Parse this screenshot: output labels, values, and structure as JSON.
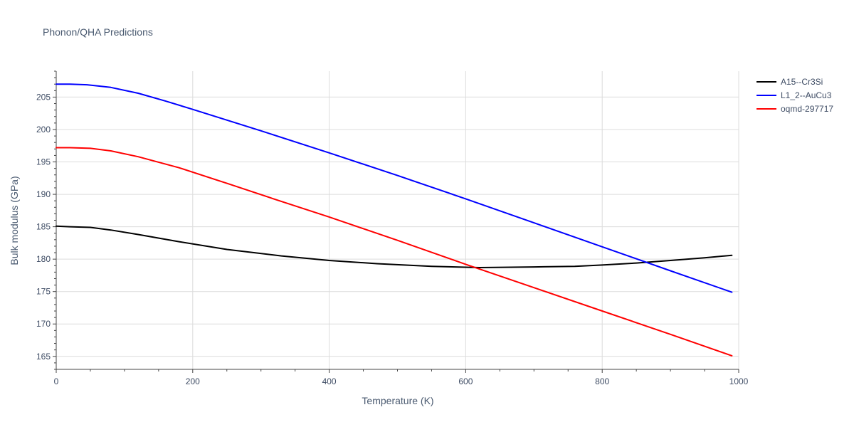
{
  "chart_data": {
    "type": "line",
    "title": "Phonon/QHA Predictions",
    "xlabel": "Temperature (K)",
    "ylabel": "Bulk modulus (GPa)",
    "xlim": [
      0,
      1000
    ],
    "ylim": [
      163,
      209
    ],
    "xticks": [
      0,
      200,
      400,
      600,
      800,
      1000
    ],
    "yticks": [
      165,
      170,
      175,
      180,
      185,
      190,
      195,
      200,
      205
    ],
    "grid": true,
    "legend_position": "top-right",
    "series": [
      {
        "name": "A15--Cr3Si",
        "color": "#000000",
        "x": [
          0,
          20,
          50,
          80,
          120,
          180,
          250,
          330,
          400,
          470,
          550,
          620,
          700,
          760,
          800,
          850,
          900,
          950,
          990
        ],
        "y": [
          185.1,
          185.0,
          184.9,
          184.5,
          183.8,
          182.7,
          181.5,
          180.5,
          179.8,
          179.3,
          178.9,
          178.7,
          178.8,
          178.9,
          179.1,
          179.4,
          179.8,
          180.2,
          180.6
        ]
      },
      {
        "name": "L1_2--AuCu3",
        "color": "#0000ff",
        "x": [
          0,
          20,
          45,
          80,
          120,
          160,
          200,
          300,
          400,
          500,
          600,
          700,
          800,
          900,
          990
        ],
        "y": [
          207.0,
          207.0,
          206.9,
          206.5,
          205.6,
          204.4,
          203.1,
          199.8,
          196.4,
          192.9,
          189.3,
          185.6,
          181.9,
          178.2,
          174.9
        ]
      },
      {
        "name": "oqmd-297717",
        "color": "#ff0000",
        "x": [
          0,
          20,
          50,
          80,
          120,
          180,
          250,
          330,
          400,
          500,
          600,
          700,
          800,
          900,
          990
        ],
        "y": [
          197.2,
          197.2,
          197.1,
          196.7,
          195.8,
          194.1,
          191.7,
          188.9,
          186.5,
          182.9,
          179.2,
          175.6,
          172.0,
          168.4,
          165.1
        ]
      }
    ]
  }
}
